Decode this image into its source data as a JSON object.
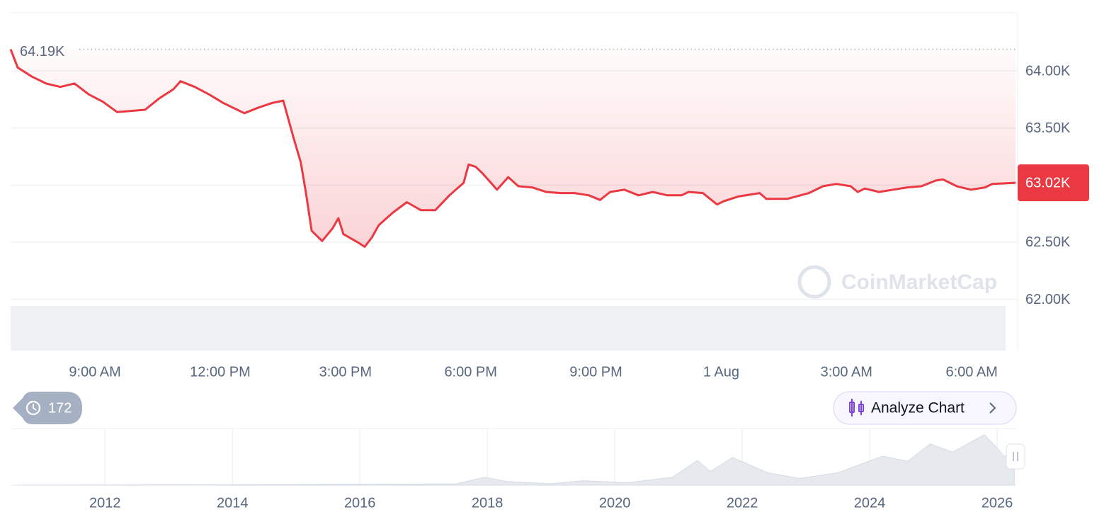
{
  "chart_data": [
    {
      "type": "line",
      "color": "#ea3943",
      "x": [
        6.98,
        7.15,
        7.49,
        7.83,
        8.17,
        8.51,
        8.85,
        9.19,
        9.53,
        9.86,
        10.2,
        10.54,
        10.88,
        11.05,
        11.39,
        11.73,
        12.07,
        12.41,
        12.58,
        12.92,
        13.25,
        13.51,
        13.76,
        13.93,
        14.05,
        14.19,
        14.44,
        14.69,
        14.83,
        14.95,
        15.29,
        15.46,
        15.63,
        15.8,
        16.14,
        16.47,
        16.81,
        17.15,
        17.49,
        17.83,
        17.95,
        18.12,
        18.29,
        18.63,
        18.9,
        19.14,
        19.47,
        19.81,
        20.15,
        20.49,
        20.83,
        21.1,
        21.34,
        21.68,
        22.02,
        22.36,
        22.71,
        23.05,
        23.22,
        23.56,
        23.9,
        24.07,
        24.41,
        24.92,
        25.08,
        25.59,
        26.1,
        26.44,
        26.76,
        27.1,
        27.27,
        27.44,
        27.78,
        28.12,
        28.46,
        28.8,
        29.14,
        29.31,
        29.64,
        29.98,
        30.32,
        30.49,
        31.05
      ],
      "values": [
        64190,
        64030,
        63950,
        63890,
        63860,
        63890,
        63795,
        63730,
        63640,
        63650,
        63660,
        63760,
        63840,
        63910,
        63860,
        63795,
        63720,
        63660,
        63630,
        63680,
        63720,
        63740,
        63410,
        63200,
        62940,
        62600,
        62510,
        62620,
        62710,
        62570,
        62500,
        62460,
        62540,
        62650,
        62760,
        62850,
        62780,
        62780,
        62910,
        63020,
        63180,
        63160,
        63100,
        62960,
        63070,
        62990,
        62980,
        62940,
        62930,
        62930,
        62910,
        62870,
        62940,
        62960,
        62910,
        62940,
        62910,
        62910,
        62940,
        62930,
        62830,
        62860,
        62900,
        62930,
        62880,
        62880,
        62930,
        62990,
        63010,
        62990,
        62940,
        62970,
        62940,
        62960,
        62980,
        62990,
        63040,
        63050,
        62990,
        62960,
        62980,
        63010,
        63020
      ],
      "xlim": [
        6.98,
        31.1
      ],
      "xticks": [
        {
          "value": 9,
          "label": "9:00 AM"
        },
        {
          "value": 12,
          "label": "12:00 PM"
        },
        {
          "value": 15,
          "label": "3:00 PM"
        },
        {
          "value": 18,
          "label": "6:00 PM"
        },
        {
          "value": 21,
          "label": "9:00 PM"
        },
        {
          "value": 24,
          "label": "1 Aug"
        },
        {
          "value": 27,
          "label": "3:00 AM"
        },
        {
          "value": 30,
          "label": "6:00 AM"
        }
      ],
      "ylim": [
        61550,
        64510
      ],
      "yticks": [
        {
          "value": 62000,
          "label": "62.00K"
        },
        {
          "value": 62500,
          "label": "62.50K"
        },
        {
          "value": 63000,
          "label": "63.00K"
        },
        {
          "value": 63500,
          "label": "63.50K"
        },
        {
          "value": 64000,
          "label": "64.00K"
        }
      ],
      "grid": true,
      "high_label": {
        "value": 64190,
        "label": "64.19K"
      },
      "last_label": {
        "value": 63020,
        "label": "63.02K"
      },
      "watermark": "CoinMarketCap"
    },
    {
      "type": "area",
      "color": "#e6eaef",
      "x": [
        2010.6,
        2013.9,
        2017.5,
        2017.96,
        2018.3,
        2019.0,
        2019.5,
        2020.2,
        2020.9,
        2021.3,
        2021.5,
        2021.85,
        2022.4,
        2022.9,
        2023.5,
        2024.2,
        2024.6,
        2024.95,
        2025.3,
        2025.8,
        2026.0,
        2026.1,
        2026.27
      ],
      "values": [
        0,
        1000,
        3000,
        19000,
        9000,
        3500,
        11000,
        6000,
        19000,
        60000,
        33000,
        67000,
        30000,
        16500,
        30000,
        70000,
        58000,
        100000,
        80000,
        122000,
        90000,
        70000,
        78000
      ],
      "xlim": [
        2010.53,
        2026.3
      ],
      "ylim": [
        0,
        137000
      ],
      "xticks": [
        2012,
        2014,
        2016,
        2018,
        2020,
        2022,
        2024,
        2026
      ]
    }
  ],
  "controls": {
    "history_count": 172,
    "analyze_button": "Analyze Chart"
  }
}
